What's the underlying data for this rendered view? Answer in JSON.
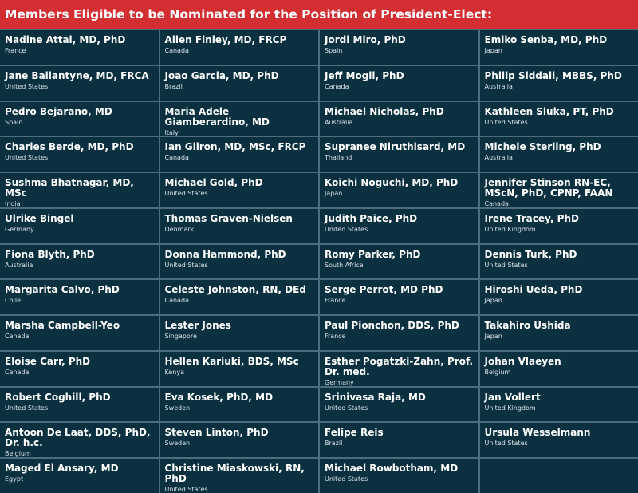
{
  "header": {
    "title": "Members Eligible to be Nominated for the Position of President-Elect:"
  },
  "columns": [
    [
      {
        "name": "Nadine Attal, MD, PhD",
        "country": "France"
      },
      {
        "name": "Jane Ballantyne, MD, FRCA",
        "country": "United States"
      },
      {
        "name": "Pedro Bejarano, MD",
        "country": "Spain"
      },
      {
        "name": "Charles Berde, MD, PhD",
        "country": "United States"
      },
      {
        "name": "Sushma Bhatnagar, MD, MSc",
        "country": "India"
      },
      {
        "name": "Ulrike Bingel",
        "country": "Germany"
      },
      {
        "name": "Fiona Blyth, PhD",
        "country": "Australia"
      },
      {
        "name": "Margarita Calvo, PhD",
        "country": "Chile"
      },
      {
        "name": "Marsha Campbell-Yeo",
        "country": "Canada"
      },
      {
        "name": "Eloise Carr, PhD",
        "country": "Canada"
      },
      {
        "name": "Robert Coghill, PhD",
        "country": "United States"
      },
      {
        "name": "Antoon De Laat, DDS, PhD, Dr. h.c.",
        "country": "Belgium"
      },
      {
        "name": "Maged El Ansary, MD",
        "country": "Egypt"
      }
    ],
    [
      {
        "name": "Allen Finley, MD, FRCP",
        "country": "Canada"
      },
      {
        "name": "Joao Garcia, MD, PhD",
        "country": "Brazil"
      },
      {
        "name": "Maria Adele Giamberardino, MD",
        "country": "Italy"
      },
      {
        "name": "Ian Gilron, MD, MSc, FRCP",
        "country": "Canada"
      },
      {
        "name": "Michael Gold, PhD",
        "country": "United States"
      },
      {
        "name": "Thomas Graven-Nielsen",
        "country": "Denmark"
      },
      {
        "name": "Donna Hammond, PhD",
        "country": "United States"
      },
      {
        "name": "Celeste Johnston, RN, DEd",
        "country": "Canada"
      },
      {
        "name": "Lester Jones",
        "country": "Singapore"
      },
      {
        "name": "Hellen Kariuki, BDS, MSc",
        "country": "Kenya"
      },
      {
        "name": "Eva Kosek, PhD, MD",
        "country": "Sweden"
      },
      {
        "name": "Steven Linton, PhD",
        "country": "Sweden"
      },
      {
        "name": "Christine Miaskowski, RN, PhD",
        "country": "United States"
      }
    ],
    [
      {
        "name": "Jordi Miro, PhD",
        "country": "Spain"
      },
      {
        "name": "Jeff Mogil, PhD",
        "country": "Canada"
      },
      {
        "name": "Michael Nicholas, PhD",
        "country": "Australia"
      },
      {
        "name": "Supranee Niruthisard, MD",
        "country": "Thailand"
      },
      {
        "name": "Koichi Noguchi, MD, PhD",
        "country": "Japan"
      },
      {
        "name": "Judith Paice, PhD",
        "country": "United States"
      },
      {
        "name": "Romy Parker, PhD",
        "country": "South Africa"
      },
      {
        "name": "Serge Perrot, MD PhD",
        "country": "France"
      },
      {
        "name": "Paul Pionchon, DDS, PhD",
        "country": "France"
      },
      {
        "name": "Esther Pogatzki-Zahn, Prof. Dr. med.",
        "country": "Germany"
      },
      {
        "name": "Srinivasa Raja, MD",
        "country": "United States"
      },
      {
        "name": "Felipe Reis",
        "country": "Brazil"
      },
      {
        "name": "Michael Rowbotham, MD",
        "country": "United States"
      }
    ],
    [
      {
        "name": "Emiko Senba, MD, PhD",
        "country": "Japan"
      },
      {
        "name": "Philip Siddall, MBBS, PhD",
        "country": "Australia"
      },
      {
        "name": "Kathleen Sluka, PT, PhD",
        "country": "United States"
      },
      {
        "name": "Michele Sterling, PhD",
        "country": "Australia"
      },
      {
        "name": "Jennifer Stinson RN-EC, MScN, PhD, CPNP, FAAN",
        "country": "Canada"
      },
      {
        "name": "Irene Tracey, PhD",
        "country": "United Kingdom"
      },
      {
        "name": "Dennis Turk, PhD",
        "country": "United States"
      },
      {
        "name": "Hiroshi Ueda, PhD",
        "country": "Japan"
      },
      {
        "name": "Takahiro Ushida",
        "country": "Japan"
      },
      {
        "name": "Johan Vlaeyen",
        "country": "Belgium"
      },
      {
        "name": "Jan Vollert",
        "country": "United Kingdom"
      },
      {
        "name": "Ursula Wesselmann",
        "country": "United States"
      },
      {
        "name": "",
        "country": ""
      }
    ]
  ]
}
